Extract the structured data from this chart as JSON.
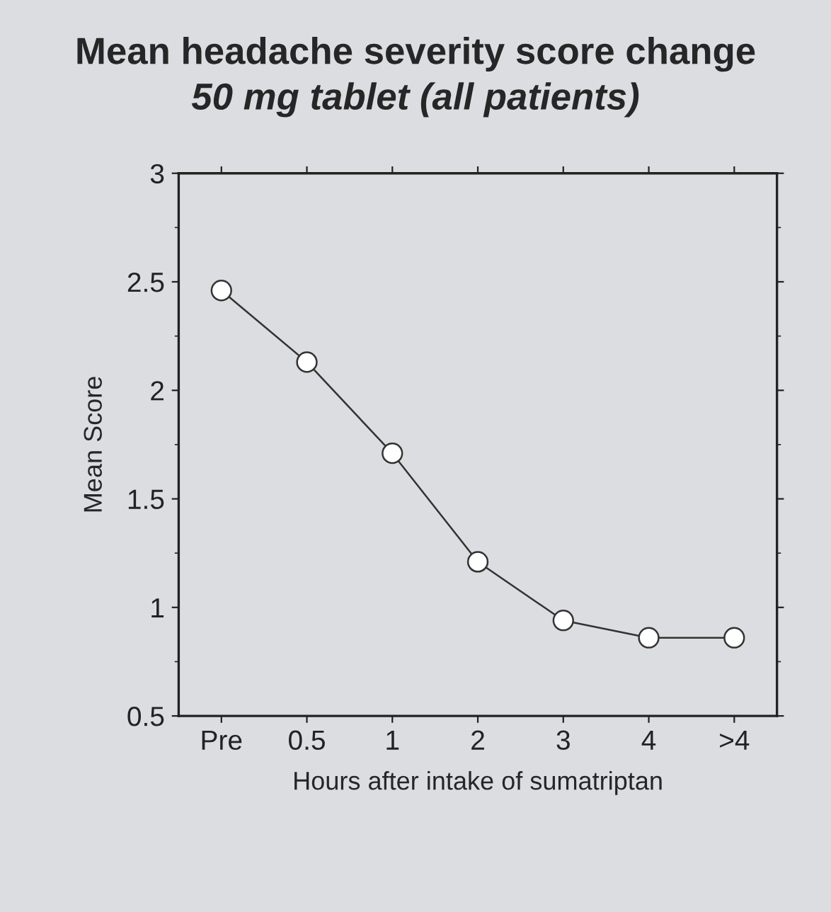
{
  "chart_data": {
    "type": "line",
    "title": "Mean headache severity score change",
    "subtitle": "50 mg tablet (all patients)",
    "xlabel": "Hours after intake of sumatriptan",
    "ylabel": "Mean Score",
    "categories": [
      "Pre",
      "0.5",
      "1",
      "2",
      "3",
      "4",
      ">4"
    ],
    "series": [
      {
        "color": "#333333",
        "values": [
          2.46,
          2.13,
          1.71,
          1.21,
          0.94,
          0.86,
          0.86
        ]
      }
    ],
    "ylim": [
      0.5,
      3
    ],
    "yticks": [
      0.5,
      1,
      1.5,
      2,
      2.5,
      3
    ],
    "marker": "circle",
    "line_style": "solid",
    "grid": false,
    "legend": false
  }
}
